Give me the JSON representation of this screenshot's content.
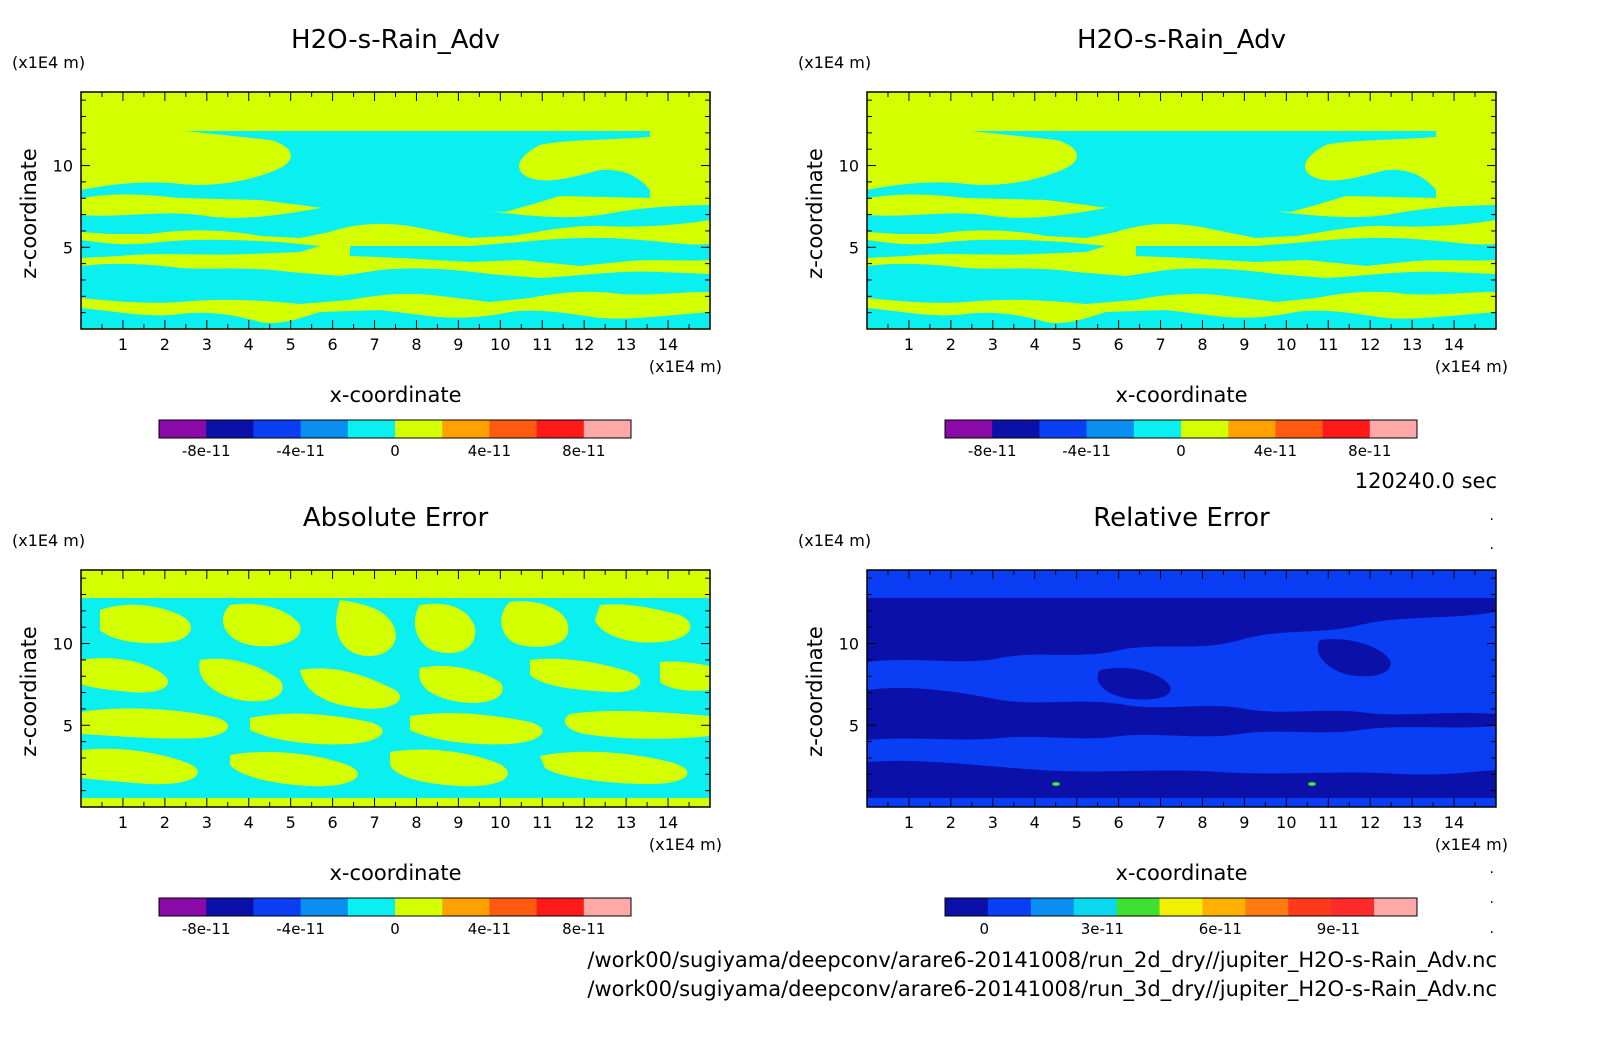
{
  "chart_data": [
    {
      "type": "heatmap",
      "title": "H2O-s-Rain_Adv",
      "xlabel": "x-coordinate",
      "ylabel": "z-coordinate",
      "xunit": "(x1E4 m)",
      "yunit": "(x1E4 m)",
      "xlim": [
        0,
        15
      ],
      "ylim": [
        0,
        14.5
      ],
      "xticks": [
        "1",
        "2",
        "3",
        "4",
        "5",
        "6",
        "7",
        "8",
        "9",
        "10",
        "11",
        "12",
        "13",
        "14"
      ],
      "yticks": [
        "5",
        "10"
      ],
      "pattern": "field",
      "colorbar": {
        "min": -1e-10,
        "max": 1e-10,
        "colors": [
          "#8a0aa8",
          "#0a10a8",
          "#0a3ef5",
          "#0a8ef0",
          "#0af0f0",
          "#d4ff00",
          "#ffa200",
          "#ff5a10",
          "#ff1a1a",
          "#ffa8a8"
        ],
        "labels": [
          "-8e-11",
          "-4e-11",
          "0",
          "4e-11",
          "8e-11"
        ]
      }
    },
    {
      "type": "heatmap",
      "title": "H2O-s-Rain_Adv",
      "xlabel": "x-coordinate",
      "ylabel": "z-coordinate",
      "xunit": "(x1E4 m)",
      "yunit": "(x1E4 m)",
      "xlim": [
        0,
        15
      ],
      "ylim": [
        0,
        14.5
      ],
      "xticks": [
        "1",
        "2",
        "3",
        "4",
        "5",
        "6",
        "7",
        "8",
        "9",
        "10",
        "11",
        "12",
        "13",
        "14"
      ],
      "yticks": [
        "5",
        "10"
      ],
      "pattern": "field",
      "colorbar": {
        "min": -1e-10,
        "max": 1e-10,
        "colors": [
          "#8a0aa8",
          "#0a10a8",
          "#0a3ef5",
          "#0a8ef0",
          "#0af0f0",
          "#d4ff00",
          "#ffa200",
          "#ff5a10",
          "#ff1a1a",
          "#ffa8a8"
        ],
        "labels": [
          "-8e-11",
          "-4e-11",
          "0",
          "4e-11",
          "8e-11"
        ]
      }
    },
    {
      "type": "heatmap",
      "title": "Absolute Error",
      "xlabel": "x-coordinate",
      "ylabel": "z-coordinate",
      "xunit": "(x1E4 m)",
      "yunit": "(x1E4 m)",
      "xlim": [
        0,
        15
      ],
      "ylim": [
        0,
        14.5
      ],
      "xticks": [
        "1",
        "2",
        "3",
        "4",
        "5",
        "6",
        "7",
        "8",
        "9",
        "10",
        "11",
        "12",
        "13",
        "14"
      ],
      "yticks": [
        "5",
        "10"
      ],
      "pattern": "abs",
      "colorbar": {
        "min": -1e-10,
        "max": 1e-10,
        "colors": [
          "#8a0aa8",
          "#0a10a8",
          "#0a3ef5",
          "#0a8ef0",
          "#0af0f0",
          "#d4ff00",
          "#ffa200",
          "#ff5a10",
          "#ff1a1a",
          "#ffa8a8"
        ],
        "labels": [
          "-8e-11",
          "-4e-11",
          "0",
          "4e-11",
          "8e-11"
        ]
      }
    },
    {
      "type": "heatmap",
      "title": "Relative Error",
      "xlabel": "x-coordinate",
      "ylabel": "z-coordinate",
      "xunit": "(x1E4 m)",
      "yunit": "(x1E4 m)",
      "xlim": [
        0,
        15
      ],
      "ylim": [
        0,
        14.5
      ],
      "xticks": [
        "1",
        "2",
        "3",
        "4",
        "5",
        "6",
        "7",
        "8",
        "9",
        "10",
        "11",
        "12",
        "13",
        "14"
      ],
      "yticks": [
        "5",
        "10"
      ],
      "pattern": "rel",
      "colorbar": {
        "min": -1e-11,
        "max": 1.1e-10,
        "colors": [
          "#0a10a8",
          "#0a3ef5",
          "#0a8ef0",
          "#0ad8f0",
          "#40e030",
          "#f0f000",
          "#ffb000",
          "#ff7a10",
          "#ff3a1a",
          "#ff2a2a",
          "#ffa8a8"
        ],
        "labels": [
          "0",
          "3e-11",
          "6e-11",
          "9e-11"
        ]
      }
    }
  ],
  "time_label": "120240.0 sec",
  "footer": [
    "/work00/sugiyama/deepconv/arare6-20141008/run_2d_dry//jupiter_H2O-s-Rain_Adv.nc",
    "/work00/sugiyama/deepconv/arare6-20141008/run_3d_dry//jupiter_H2O-s-Rain_Adv.nc"
  ]
}
